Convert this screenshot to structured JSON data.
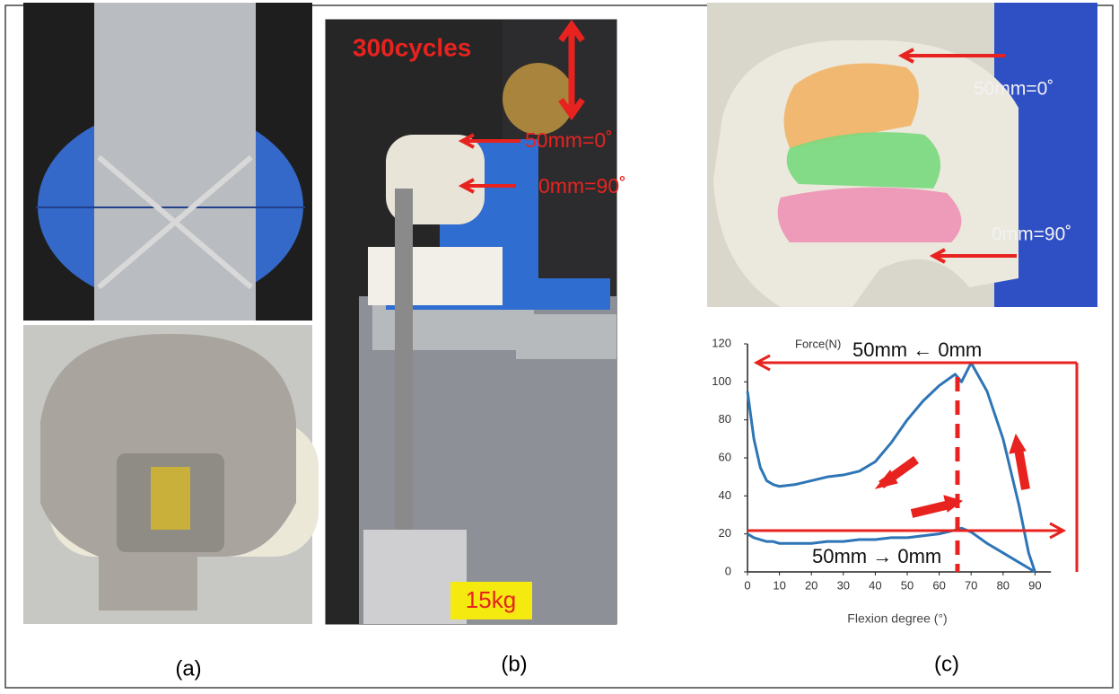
{
  "panels": {
    "a": {
      "label": "(a)"
    },
    "b": {
      "label": "(b)",
      "cycles": "300cycles",
      "top_marker": "50mm=0˚",
      "bottom_marker": "0mm=90˚",
      "weight": "15kg"
    },
    "c": {
      "label": "(c)",
      "top_marker": "50mm=0˚",
      "bottom_marker": "0mm=90˚"
    }
  },
  "chart_data": {
    "type": "line",
    "y_axis_label": "Force(N)",
    "x_axis_label": "Flexion degree (°)",
    "top_annotation": "50mm ← 0mm",
    "bottom_annotation": "50mm → 0mm",
    "x": [
      0,
      2,
      4,
      6,
      8,
      10,
      15,
      20,
      25,
      30,
      35,
      40,
      45,
      50,
      55,
      60,
      65,
      67,
      70,
      75,
      80,
      85,
      88,
      90
    ],
    "series": [
      {
        "color": "#2e75b6",
        "values": [
          95,
          70,
          55,
          48,
          46,
          45,
          46,
          48,
          50,
          51,
          53,
          58,
          68,
          80,
          90,
          98,
          104,
          100,
          110,
          95,
          70,
          35,
          10,
          0
        ]
      },
      {
        "color": "#2e75b6",
        "values": [
          20,
          18,
          17,
          16,
          16,
          15,
          15,
          15,
          16,
          16,
          17,
          17,
          18,
          18,
          19,
          20,
          22,
          23,
          21,
          15,
          10,
          5,
          2,
          0
        ]
      }
    ],
    "xlim": [
      0,
      95
    ],
    "ylim": [
      0,
      120
    ],
    "xticks": [
      0,
      10,
      20,
      30,
      40,
      50,
      60,
      70,
      80,
      90
    ],
    "yticks": [
      0,
      20,
      40,
      60,
      80,
      100,
      120
    ],
    "grid": false
  }
}
